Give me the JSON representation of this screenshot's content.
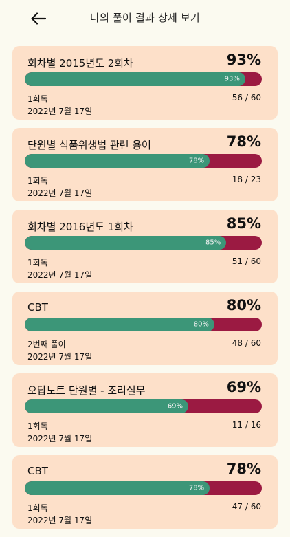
{
  "header": {
    "title": "나의 풀이 결과 상세 보기",
    "back_icon": "arrow-left-icon"
  },
  "colors": {
    "background": "#fbfaf0",
    "card": "#fde0c9",
    "correct": "#3c9678",
    "wrong": "#9b1a42"
  },
  "results": [
    {
      "title": "회차별 2015년도 2회차",
      "percent_text": "93%",
      "percent": 93,
      "round": "1회독",
      "date": "2022년 7월 17일",
      "score": "56 / 60"
    },
    {
      "title": "단원별 식품위생법 관련 용어",
      "percent_text": "78%",
      "percent": 78,
      "round": "1회독",
      "date": "2022년 7월 17일",
      "score": "18 / 23"
    },
    {
      "title": "회차별 2016년도 1회차",
      "percent_text": "85%",
      "percent": 85,
      "round": "1회독",
      "date": "2022년 7월 17일",
      "score": "51 / 60"
    },
    {
      "title": "CBT",
      "percent_text": "80%",
      "percent": 80,
      "round": "2번째 풀이",
      "date": "2022년 7월 17일",
      "score": "48 / 60"
    },
    {
      "title": "오답노트 단원별 - 조리실무",
      "percent_text": "69%",
      "percent": 69,
      "round": "1회독",
      "date": "2022년 7월 17일",
      "score": "11 / 16"
    },
    {
      "title": "CBT",
      "percent_text": "78%",
      "percent": 78,
      "round": "1회독",
      "date": "2022년 7월 17일",
      "score": "47 / 60"
    }
  ]
}
